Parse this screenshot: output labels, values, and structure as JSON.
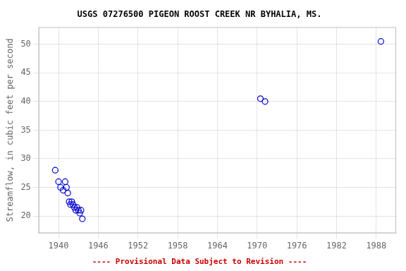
{
  "chart_data": {
    "type": "scatter",
    "title": "USGS 07276500 PIGEON ROOST CREEK NR BYHALIA, MS.",
    "y_label": "Streamflow, in cubic feet per second",
    "annotations": [
      {
        "text": "---- Provisional Data Subject to Revision ----",
        "color": "#cc0000"
      }
    ],
    "x": [
      1939.5,
      1940.0,
      1940.3,
      1940.7,
      1941.0,
      1941.2,
      1941.4,
      1941.6,
      1941.8,
      1942.0,
      1942.2,
      1942.4,
      1942.6,
      1942.8,
      1943.0,
      1943.2,
      1943.4,
      1943.6,
      1970.5,
      1971.2,
      1988.7
    ],
    "values": [
      28.0,
      26.0,
      25.0,
      24.5,
      26.0,
      25.0,
      24.0,
      22.5,
      22.0,
      22.5,
      22.0,
      21.5,
      21.0,
      21.5,
      21.0,
      20.5,
      21.0,
      19.5,
      40.5,
      40.0,
      50.5
    ],
    "color": "#0000cc",
    "marker": "open_circle",
    "xlim": [
      1937,
      1991
    ],
    "ylim": [
      17,
      53
    ],
    "xticks": [
      1940,
      1946,
      1952,
      1958,
      1964,
      1970,
      1976,
      1982,
      1988
    ],
    "yticks": [
      20,
      25,
      30,
      35,
      40,
      45,
      50
    ],
    "grid": true
  }
}
